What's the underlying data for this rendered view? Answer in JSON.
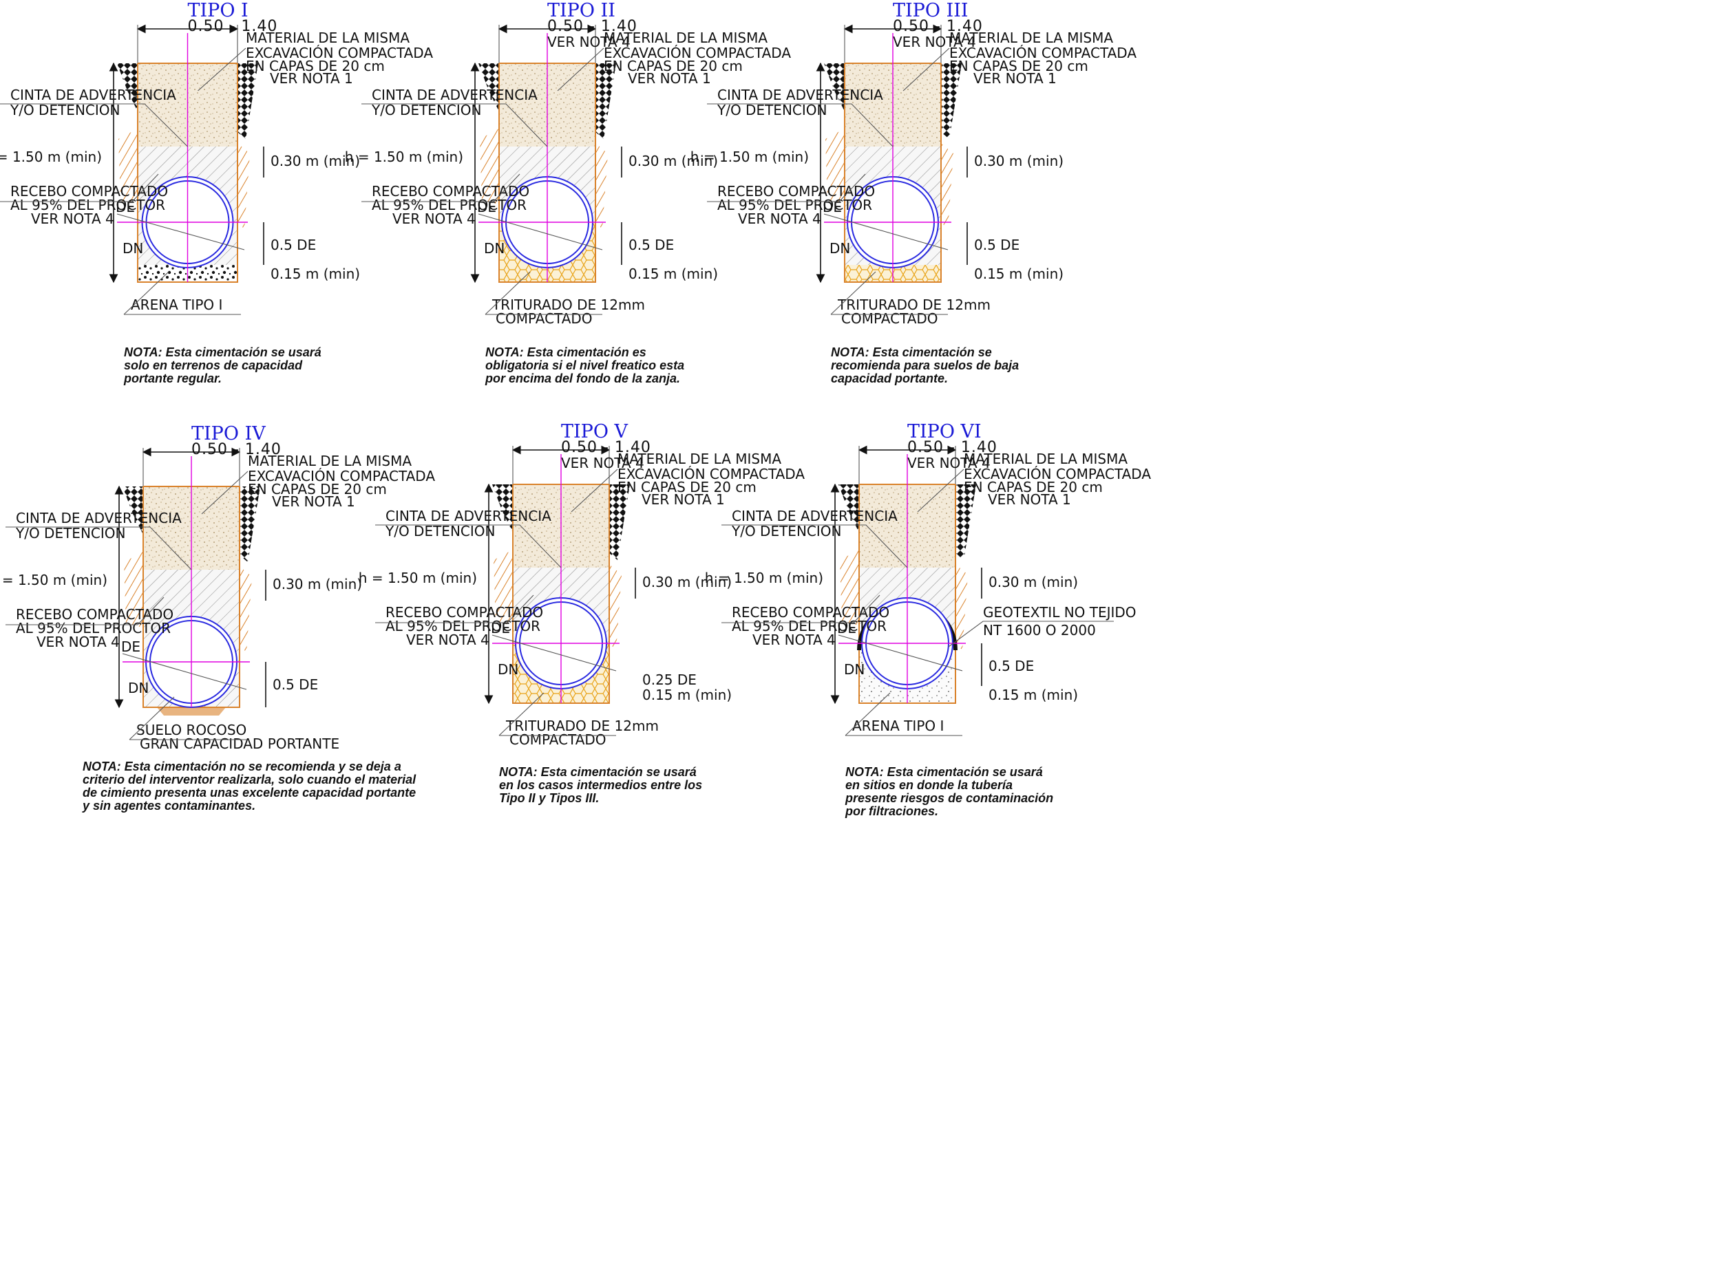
{
  "common": {
    "width_dim": "0.50 - 1.40",
    "ver_nota_4": "VER NOTA 4",
    "material_1": "MATERIAL DE LA MISMA",
    "material_2": "EXCAVACIÓN COMPACTADA",
    "material_3": "EN CAPAS DE 20 cm",
    "material_4": "VER NOTA 1",
    "cinta_1": "CINTA DE ADVERTENCIA",
    "cinta_2": "Y/O DETENCION",
    "h_min": "h = 1.50 m (min)",
    "recebo_1": "RECEBO COMPACTADO",
    "recebo_2": "AL 95% DEL PROCTOR",
    "recebo_3": "VER NOTA 4",
    "de": "DE",
    "dn": "DN",
    "d030": "0.30 m (min)",
    "d05de": "0.5 DE",
    "d015": "0.15 m (min)"
  },
  "types": [
    {
      "title": "TIPO I",
      "bedding": "ARENA TIPO I",
      "bedding_2": "",
      "note": [
        "NOTA: Esta cimentación se usará",
        "solo en terrenos de capacidad",
        "portante regular."
      ]
    },
    {
      "title": "TIPO II",
      "bedding": "TRITURADO DE 12mm",
      "bedding_2": "COMPACTADO",
      "note": [
        "NOTA: Esta cimentación es",
        "obligatoria si el nivel freatico esta",
        "por encima del fondo de la zanja."
      ]
    },
    {
      "title": "TIPO III",
      "bedding": "TRITURADO DE 12mm",
      "bedding_2": "COMPACTADO",
      "note": [
        "NOTA: Esta cimentación se",
        "recomienda para suelos de baja",
        "capacidad portante."
      ]
    },
    {
      "title": "TIPO IV",
      "bedding": "SUELO ROCOSO",
      "bedding_2": "GRAN CAPACIDAD PORTANTE",
      "note": [
        "NOTA: Esta cimentación no se recomienda y se deja a",
        "criterio del interventor realizarla, solo cuando el material",
        "de cimiento presenta unas excelente capacidad portante",
        "y sin agentes contaminantes."
      ]
    },
    {
      "title": "TIPO V",
      "bedding": "TRITURADO DE 12mm",
      "bedding_2": "COMPACTADO",
      "d025": "0.25 DE",
      "note": [
        "NOTA: Esta cimentación se usará",
        "en los casos intermedios entre los",
        "Tipo II y Tipos III."
      ]
    },
    {
      "title": "TIPO VI",
      "bedding": "ARENA TIPO I",
      "bedding_2": "",
      "geo_1": "GEOTEXTIL NO TEJIDO",
      "geo_2": "NT 1600 O 2000",
      "note": [
        "NOTA: Esta cimentación se usará",
        "en sitios en donde la tubería",
        "presente riesgos de contaminación",
        "por filtraciones."
      ]
    }
  ],
  "colors": {
    "title": "#1a1ad6",
    "pipe": "#2a2ae0",
    "axis": "#e000e0",
    "trench_edge": "#d9822b",
    "soil_fill": "#efe3cf",
    "gravel": "#e8a317"
  }
}
